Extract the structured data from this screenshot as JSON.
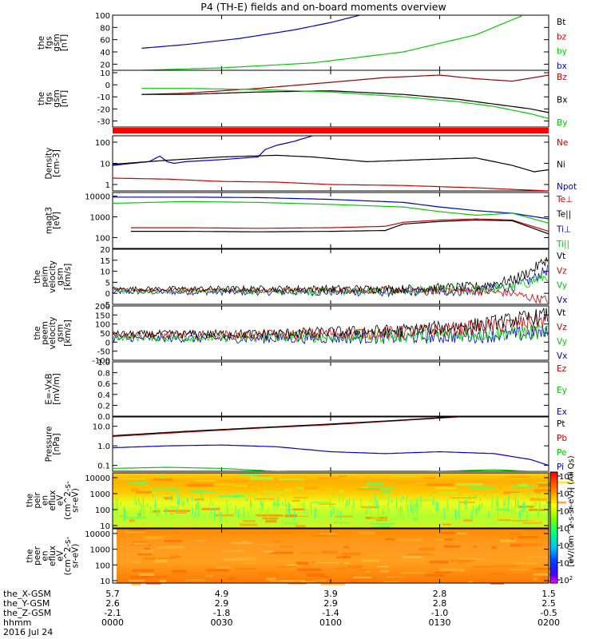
{
  "title": "P4 (TH-E) fields and on-board moments overview",
  "date_label": "2016 Jul 24",
  "colorbar_label": "[eV/(cm^2-s-sr-eV)] (All Qs)",
  "colorbar_ticks": [
    "10^8",
    "10^7",
    "10^6",
    "10^5",
    "10^4",
    "10^3",
    "10^2"
  ],
  "time_axis": {
    "rows": [
      {
        "name": "the_X-GSM",
        "values": [
          "5.7",
          "4.9",
          "3.9",
          "2.8",
          "1.5"
        ]
      },
      {
        "name": "the_Y-GSM",
        "values": [
          "2.6",
          "2.9",
          "2.9",
          "2.8",
          "2.5"
        ]
      },
      {
        "name": "the_Z-GSM",
        "values": [
          "-2.1",
          "-1.8",
          "-1.4",
          "-1.0",
          "-0.5"
        ]
      },
      {
        "name": "hhmm",
        "values": [
          "0000",
          "0030",
          "0100",
          "0130",
          "0200"
        ]
      }
    ],
    "xlim": [
      0,
      120
    ]
  },
  "chart_data": [
    {
      "type": "line",
      "id": "fgs_btot",
      "ylabel": [
        "the",
        "fgs",
        "gsm",
        "[nT]"
      ],
      "ylim": [
        10,
        100
      ],
      "yticks": [
        20,
        40,
        60,
        80,
        100
      ],
      "legend": [
        {
          "name": "Bt",
          "color": "#000000"
        },
        {
          "name": "bz",
          "color": "#cc0000"
        },
        {
          "name": "by",
          "color": "#00cc00"
        },
        {
          "name": "bx",
          "color": "#0000cc"
        }
      ],
      "series": [
        {
          "name": "blue",
          "color": "#0000cc",
          "x": [
            8,
            20,
            35,
            50,
            60,
            68
          ],
          "y": [
            46,
            52,
            62,
            76,
            88,
            100
          ]
        },
        {
          "name": "green",
          "color": "#00cc00",
          "x": [
            8,
            30,
            55,
            80,
            100,
            113
          ],
          "y": [
            10,
            14,
            22,
            40,
            68,
            100
          ]
        }
      ]
    },
    {
      "type": "line",
      "id": "fgs_comp",
      "ylabel": [
        "the",
        "fgs",
        "gsm",
        "[nT]"
      ],
      "ylim": [
        -35,
        12
      ],
      "yticks": [
        10,
        0,
        -10,
        -20,
        -30
      ],
      "legend": [
        {
          "name": "Bz",
          "color": "#cc0000"
        },
        {
          "name": "Bx",
          "color": "#000000"
        },
        {
          "name": "By",
          "color": "#00cc00"
        }
      ],
      "series": [
        {
          "name": "Bz",
          "color": "#990000",
          "x": [
            8,
            20,
            40,
            60,
            75,
            90,
            100,
            110,
            120
          ],
          "y": [
            -8,
            -7,
            -3,
            2,
            6,
            8,
            5,
            3,
            8
          ]
        },
        {
          "name": "Bx",
          "color": "#000000",
          "x": [
            8,
            20,
            40,
            60,
            80,
            95,
            105,
            115,
            120
          ],
          "y": [
            -8,
            -8,
            -6,
            -5,
            -8,
            -12,
            -16,
            -20,
            -23
          ]
        },
        {
          "name": "By",
          "color": "#00cc00",
          "x": [
            8,
            20,
            40,
            60,
            80,
            95,
            105,
            115,
            120
          ],
          "y": [
            -3,
            -3,
            -4,
            -6,
            -10,
            -14,
            -18,
            -24,
            -28
          ]
        }
      ]
    },
    {
      "type": "line",
      "id": "density",
      "log": true,
      "ylabel": [
        "Density",
        "[cm-3]"
      ],
      "ylim": [
        0.5,
        200
      ],
      "yticks": [
        1,
        10,
        100
      ],
      "yticklabels": [
        "1",
        "10",
        "100"
      ],
      "legend": [
        {
          "name": "Ne",
          "color": "#cc0000"
        },
        {
          "name": "Ni",
          "color": "#000000"
        },
        {
          "name": "Npot",
          "color": "#0000cc"
        }
      ],
      "series": [
        {
          "name": "Npot",
          "color": "#0000cc",
          "x": [
            0,
            10,
            13,
            15,
            17,
            20,
            30,
            40,
            42,
            45,
            50,
            55
          ],
          "y": [
            8,
            12,
            22,
            12,
            10,
            12,
            15,
            20,
            45,
            70,
            110,
            200
          ]
        },
        {
          "name": "Ni",
          "color": "#000000",
          "x": [
            0,
            15,
            30,
            45,
            55,
            70,
            90,
            100,
            110,
            116,
            120
          ],
          "y": [
            9,
            14,
            20,
            24,
            20,
            12,
            16,
            18,
            8,
            4,
            5
          ]
        },
        {
          "name": "Ne",
          "color": "#cc0000",
          "x": [
            0,
            15,
            30,
            45,
            60,
            80,
            100,
            120
          ],
          "y": [
            2,
            1.8,
            1.4,
            1.3,
            1.0,
            0.9,
            0.7,
            0.5
          ]
        }
      ]
    },
    {
      "type": "line",
      "id": "temperature",
      "log": true,
      "ylabel": [
        "magt3",
        "[eV]"
      ],
      "ylim": [
        30,
        15000
      ],
      "yticks": [
        100,
        1000,
        10000
      ],
      "yticklabels": [
        "100",
        "1000",
        "10000"
      ],
      "legend": [
        {
          "name": "Te⊥",
          "color": "#cc0000"
        },
        {
          "name": "Te||",
          "color": "#000000"
        },
        {
          "name": "Ti⊥",
          "color": "#0000cc"
        },
        {
          "name": "Ti||",
          "color": "#00cc00"
        }
      ],
      "series": [
        {
          "name": "Ti⊥",
          "color": "#0000cc",
          "x": [
            0,
            20,
            40,
            60,
            80,
            90,
            100,
            110,
            120
          ],
          "y": [
            9000,
            9000,
            8500,
            7000,
            5000,
            3000,
            2000,
            1500,
            800
          ]
        },
        {
          "name": "Ti||",
          "color": "#00cc00",
          "x": [
            0,
            20,
            40,
            60,
            80,
            90,
            100,
            110,
            120
          ],
          "y": [
            4500,
            5500,
            5000,
            4000,
            3000,
            1800,
            1200,
            1500,
            500
          ]
        },
        {
          "name": "Te⊥",
          "color": "#cc0000",
          "x": [
            5,
            20,
            40,
            60,
            75,
            80,
            90,
            100,
            110,
            120
          ],
          "y": [
            300,
            300,
            280,
            300,
            350,
            550,
            700,
            800,
            700,
            200
          ]
        },
        {
          "name": "Te||",
          "color": "#000000",
          "x": [
            5,
            20,
            40,
            60,
            75,
            80,
            90,
            100,
            110,
            120
          ],
          "y": [
            200,
            200,
            190,
            200,
            220,
            450,
            600,
            700,
            650,
            150
          ]
        }
      ]
    },
    {
      "type": "line",
      "id": "peim_vel",
      "noisy": true,
      "ylabel": [
        "the",
        "peim",
        "velocity",
        "gsm",
        "[km/s]"
      ],
      "ylim": [
        -5,
        20
      ],
      "yticks": [
        -5,
        0,
        5,
        10,
        15,
        20
      ],
      "legend": [
        {
          "name": "Vt",
          "color": "#000000"
        },
        {
          "name": "Vz",
          "color": "#cc0000"
        },
        {
          "name": "Vy",
          "color": "#00cc00"
        },
        {
          "name": "Vx",
          "color": "#0000cc"
        }
      ],
      "series": [
        {
          "name": "Vx",
          "color": "#0000cc",
          "noise": 1.0,
          "x": [
            0,
            40,
            80,
            100,
            110,
            115,
            120
          ],
          "y": [
            0.5,
            0.5,
            0.5,
            1.0,
            3,
            6,
            11
          ]
        },
        {
          "name": "Vy",
          "color": "#00cc00",
          "noise": 1.0,
          "x": [
            0,
            40,
            80,
            100,
            110,
            115,
            120
          ],
          "y": [
            1.0,
            1.0,
            1.0,
            1.5,
            3,
            5,
            8
          ]
        },
        {
          "name": "Vz",
          "color": "#cc0000",
          "noise": 0.8,
          "x": [
            0,
            40,
            80,
            100,
            110,
            115,
            120
          ],
          "y": [
            1.5,
            1.5,
            1.5,
            1.0,
            0,
            -2,
            -3
          ]
        },
        {
          "name": "Vt",
          "color": "#000000",
          "noise": 1.0,
          "x": [
            0,
            40,
            80,
            100,
            110,
            115,
            120
          ],
          "y": [
            2,
            2,
            2,
            3,
            6,
            10,
            16
          ]
        }
      ]
    },
    {
      "type": "line",
      "id": "peem_vel",
      "noisy": true,
      "ylabel": [
        "the",
        "peem",
        "velocity",
        "gsm",
        "[km/s]"
      ],
      "ylim": [
        -100,
        200
      ],
      "yticks": [
        -100,
        -50,
        0,
        50,
        100,
        150,
        200
      ],
      "legend": [
        {
          "name": "Vt",
          "color": "#000000"
        },
        {
          "name": "Vz",
          "color": "#cc0000"
        },
        {
          "name": "Vy",
          "color": "#00cc00"
        },
        {
          "name": "Vx",
          "color": "#0000cc"
        }
      ],
      "series": [
        {
          "name": "Vx",
          "color": "#0000cc",
          "noise": 18,
          "x": [
            0,
            40,
            80,
            100,
            120
          ],
          "y": [
            20,
            20,
            25,
            35,
            50
          ]
        },
        {
          "name": "Vy",
          "color": "#00cc00",
          "noise": 18,
          "x": [
            0,
            40,
            80,
            100,
            120
          ],
          "y": [
            25,
            25,
            35,
            45,
            60
          ]
        },
        {
          "name": "Vz",
          "color": "#cc0000",
          "noise": 18,
          "x": [
            0,
            40,
            80,
            100,
            120
          ],
          "y": [
            40,
            40,
            55,
            80,
            120
          ]
        },
        {
          "name": "Vt",
          "color": "#000000",
          "noise": 18,
          "x": [
            0,
            40,
            80,
            100,
            120
          ],
          "y": [
            45,
            45,
            65,
            95,
            150
          ]
        }
      ]
    },
    {
      "type": "line",
      "id": "efield",
      "ylabel": [
        "E=-VxB",
        "[mV/m]"
      ],
      "ylim": [
        0,
        1.0
      ],
      "yticks": [
        0.0,
        0.2,
        0.4,
        0.6,
        0.8,
        1.0
      ],
      "yticklabels": [
        "0.0",
        "0.2",
        "0.4",
        "0.6",
        "0.8",
        "1.0"
      ],
      "legend": [
        {
          "name": "Ez",
          "color": "#cc0000"
        },
        {
          "name": "Ey",
          "color": "#00cc00"
        },
        {
          "name": "Ex",
          "color": "#0000cc"
        }
      ],
      "series": []
    },
    {
      "type": "line",
      "id": "pressure",
      "log": true,
      "ylabel": [
        "Pressure",
        "[nPa]"
      ],
      "ylim": [
        0.05,
        30
      ],
      "yticks": [
        0.1,
        1,
        10
      ],
      "yticklabels": [
        "0.1",
        "1.0",
        "10.0"
      ],
      "legend": [
        {
          "name": "Pt",
          "color": "#000000"
        },
        {
          "name": "Pb",
          "color": "#cc0000"
        },
        {
          "name": "Pe",
          "color": "#00cc00"
        },
        {
          "name": "Pi",
          "color": "#0000cc"
        }
      ],
      "series": [
        {
          "name": "Pb",
          "color": "#cc0000",
          "x": [
            0,
            20,
            40,
            60,
            80,
            95
          ],
          "y": [
            3,
            5,
            8,
            12,
            20,
            30
          ]
        },
        {
          "name": "Pt",
          "color": "#000000",
          "x": [
            0,
            20,
            40,
            60,
            80,
            95
          ],
          "y": [
            3.3,
            5.5,
            8.5,
            13,
            21,
            31
          ]
        },
        {
          "name": "Pi",
          "color": "#0000cc",
          "x": [
            0,
            15,
            30,
            45,
            60,
            75,
            90,
            105,
            115,
            120
          ],
          "y": [
            0.8,
            1.0,
            1.1,
            0.9,
            0.5,
            0.4,
            0.5,
            0.4,
            0.2,
            0.1
          ]
        },
        {
          "name": "Pe",
          "color": "#00cc00",
          "x": [
            0,
            15,
            30,
            45,
            60,
            75,
            90,
            105,
            115,
            120
          ],
          "y": [
            0.07,
            0.08,
            0.07,
            0.05,
            0.04,
            0.04,
            0.05,
            0.06,
            0.05,
            0.05
          ]
        }
      ]
    },
    {
      "type": "heatmap",
      "id": "peir_eflux",
      "log": true,
      "ylabel": [
        "the",
        "peir",
        "en",
        "eflux",
        "eV",
        "(cm^2-s-",
        "sr-eV)"
      ],
      "ylim": [
        7,
        20000
      ],
      "yticks": [
        10,
        100,
        1000,
        10000
      ],
      "yticklabels": [
        "10",
        "100",
        "1000",
        "10000"
      ]
    },
    {
      "type": "heatmap",
      "id": "peer_eflux",
      "log": true,
      "ylabel": [
        "the",
        "peer",
        "en",
        "eflux",
        "eV",
        "(cm^2-s-",
        "sr-eV)"
      ],
      "ylim": [
        7,
        20000
      ],
      "yticks": [
        10,
        100,
        1000,
        10000
      ],
      "yticklabels": [
        "10",
        "100",
        "1000",
        "10000"
      ]
    }
  ]
}
